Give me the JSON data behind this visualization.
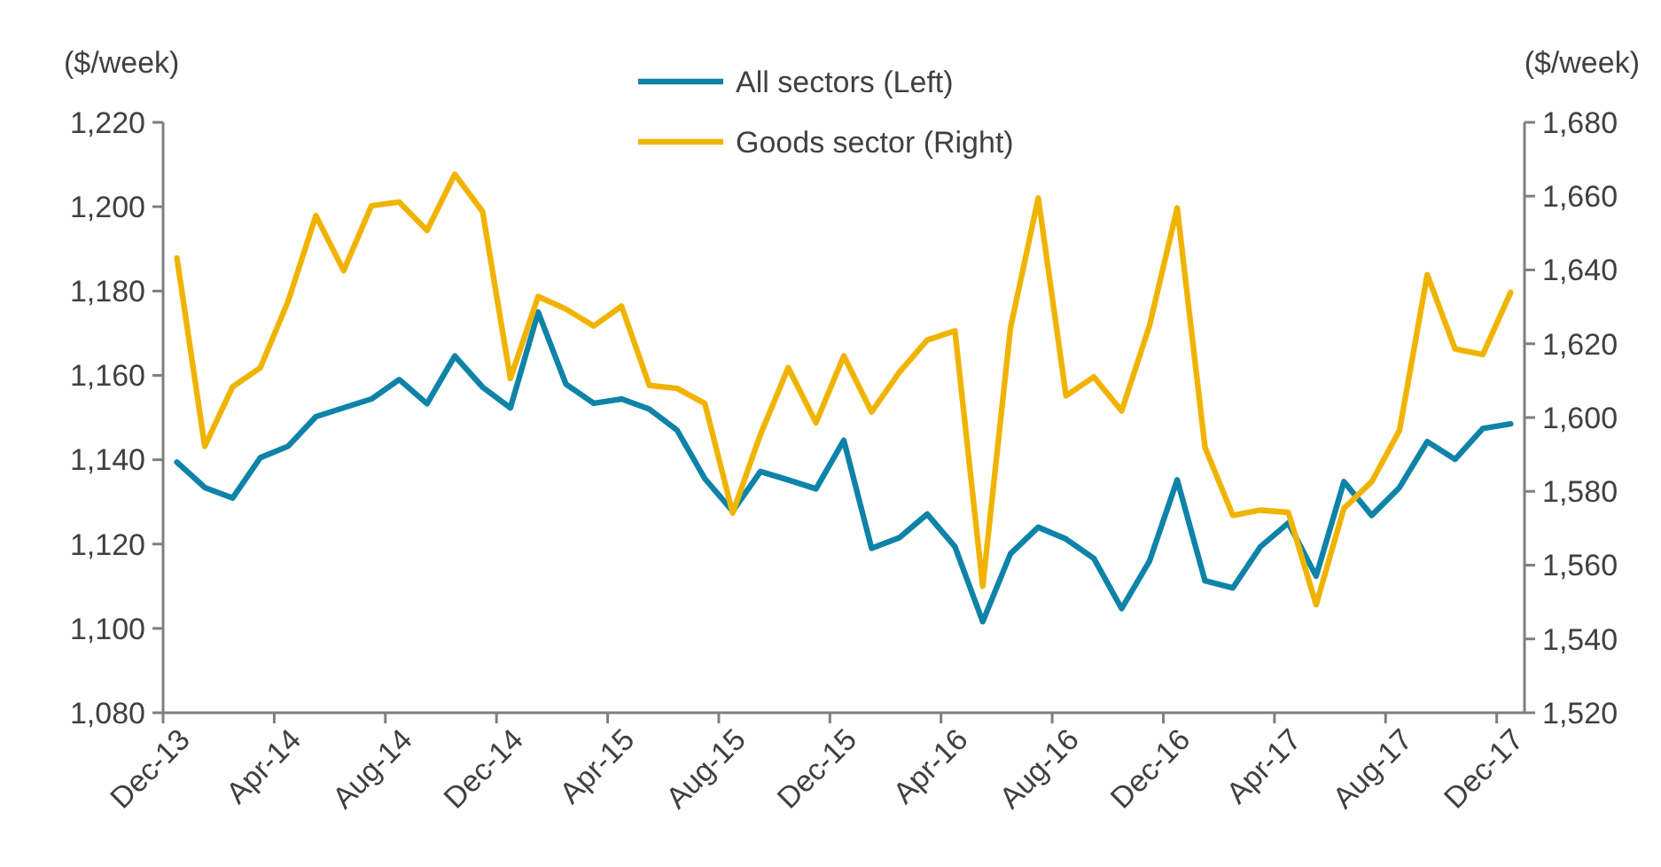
{
  "chart_data": {
    "type": "line",
    "ylabel": "($/week)",
    "y2label": "($/week)",
    "categories": [
      "Dec-13",
      null,
      null,
      null,
      "Apr-14",
      null,
      null,
      null,
      "Aug-14",
      null,
      null,
      null,
      "Dec-14",
      null,
      null,
      null,
      "Apr-15",
      null,
      null,
      null,
      "Aug-15",
      null,
      null,
      null,
      "Dec-15",
      null,
      null,
      null,
      "Apr-16",
      null,
      null,
      null,
      "Aug-16",
      null,
      null,
      null,
      "Dec-16",
      null,
      null,
      null,
      "Apr-17",
      null,
      null,
      null,
      "Aug-17",
      null,
      null,
      null,
      "Dec-17"
    ],
    "series": [
      {
        "name": "All sectors (Left)",
        "color": "#0e83a8",
        "values": [
          1139.4,
          1133.4,
          1130.9,
          1140.5,
          1143.2,
          1150.2,
          1152.3,
          1154.4,
          1159.0,
          1153.3,
          1164.6,
          1157.2,
          1152.3,
          1175.0,
          1157.9,
          1153.4,
          1154.4,
          1152.0,
          1147.0,
          1135.5,
          1127.8,
          1137.2,
          1135.2,
          1133.1,
          1144.6,
          1119.0,
          1121.5,
          1127.1,
          1119.4,
          1101.6,
          1117.7,
          1124.0,
          1121.2,
          1116.6,
          1104.7,
          1115.9,
          1135.2,
          1111.3,
          1109.6,
          1119.4,
          1125.0,
          1112.4,
          1134.8,
          1126.8,
          1133.4,
          1144.3,
          1140.1,
          1147.4,
          1148.5
        ]
      },
      {
        "name": "Goods sector (Right)",
        "color": "#f0b400",
        "axis": "y2",
        "values": [
          1643.2,
          1592.2,
          1608.3,
          1613.5,
          1631.5,
          1654.7,
          1639.8,
          1657.4,
          1658.4,
          1650.7,
          1665.9,
          1655.8,
          1610.6,
          1632.8,
          1629.4,
          1624.8,
          1630.2,
          1608.7,
          1607.9,
          1603.8,
          1574.1,
          1595.4,
          1613.5,
          1598.6,
          1616.7,
          1601.5,
          1612.3,
          1621.0,
          1623.5,
          1554.3,
          1624.3,
          1659.5,
          1605.9,
          1611.0,
          1601.8,
          1624.8,
          1656.8,
          1591.9,
          1573.5,
          1574.9,
          1574.3,
          1549.3,
          1575.4,
          1582.6,
          1596.5,
          1638.7,
          1618.6,
          1617.1,
          1633.9
        ]
      }
    ],
    "ylim": [
      1080,
      1220
    ],
    "yticks": [
      {
        "value": 1080,
        "label": "1,080"
      },
      {
        "value": 1100,
        "label": "1,100"
      },
      {
        "value": 1120,
        "label": "1,120"
      },
      {
        "value": 1140,
        "label": "1,140"
      },
      {
        "value": 1160,
        "label": "1,160"
      },
      {
        "value": 1180,
        "label": "1,180"
      },
      {
        "value": 1200,
        "label": "1,200"
      },
      {
        "value": 1220,
        "label": "1,220"
      }
    ],
    "y2lim": [
      1520,
      1680
    ],
    "y2ticks": [
      {
        "value": 1520,
        "label": "1,520"
      },
      {
        "value": 1540,
        "label": "1,540"
      },
      {
        "value": 1560,
        "label": "1,560"
      },
      {
        "value": 1580,
        "label": "1,580"
      },
      {
        "value": 1600,
        "label": "1,600"
      },
      {
        "value": 1620,
        "label": "1,620"
      },
      {
        "value": 1640,
        "label": "1,640"
      },
      {
        "value": 1660,
        "label": "1,660"
      },
      {
        "value": 1680,
        "label": "1,680"
      }
    ],
    "grid": false,
    "legend": "top",
    "marker": "none",
    "line_style": "solid"
  }
}
